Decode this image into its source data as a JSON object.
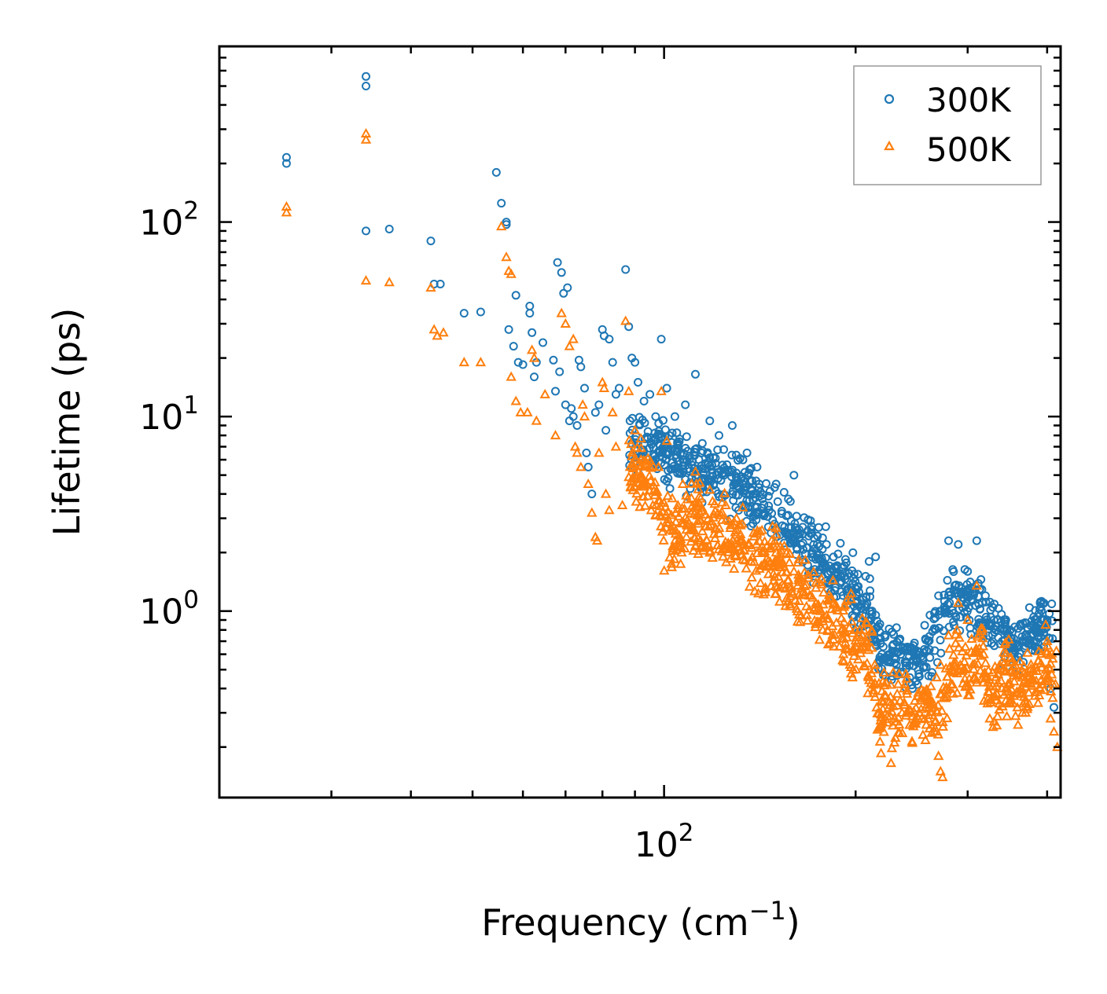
{
  "chart_data": {
    "type": "scatter",
    "title": "",
    "xlabel": "Frequency (cm",
    "xlabel_sup": "−1",
    "xlabel_end": ")",
    "ylabel": "Lifetime (ps)",
    "xscale": "log",
    "yscale": "log",
    "xlim": [
      20,
      420
    ],
    "ylim": [
      0.11,
      800
    ],
    "x_ticks": [
      {
        "value": 100,
        "base": "10",
        "exp": "2"
      }
    ],
    "y_ticks": [
      {
        "value": 1,
        "base": "10",
        "exp": "0"
      },
      {
        "value": 10,
        "base": "10",
        "exp": "1"
      },
      {
        "value": 100,
        "base": "10",
        "exp": "2"
      }
    ],
    "legend_position": "top-right",
    "series": [
      {
        "name": "300K",
        "marker": "circle",
        "color": "#1f77b4",
        "anchor_points": [
          [
            25.5,
            215
          ],
          [
            25.5,
            200
          ],
          [
            34,
            560
          ],
          [
            34,
            500
          ],
          [
            34,
            90
          ],
          [
            37,
            92
          ],
          [
            43,
            80
          ],
          [
            43.5,
            48
          ],
          [
            44.5,
            48
          ],
          [
            48.5,
            34
          ],
          [
            51.5,
            34.5
          ],
          [
            54.5,
            180
          ],
          [
            55.5,
            125
          ],
          [
            56.5,
            100
          ],
          [
            56.5,
            97
          ],
          [
            57,
            28
          ],
          [
            58,
            23
          ],
          [
            58.5,
            42
          ],
          [
            59,
            19
          ],
          [
            60,
            18.5
          ],
          [
            61.5,
            37
          ],
          [
            61.5,
            34
          ],
          [
            62,
            27
          ],
          [
            62.5,
            16
          ],
          [
            63,
            19
          ],
          [
            64.5,
            24
          ],
          [
            67,
            19.5
          ],
          [
            67.5,
            13.5
          ],
          [
            68,
            62
          ],
          [
            68.5,
            17
          ],
          [
            69,
            55
          ],
          [
            69.5,
            43
          ],
          [
            70,
            11.5
          ],
          [
            70.5,
            46
          ],
          [
            71,
            9.5
          ],
          [
            71.5,
            11
          ],
          [
            72,
            10
          ],
          [
            73,
            9
          ],
          [
            73.5,
            19.5
          ],
          [
            74,
            18
          ],
          [
            75,
            14
          ],
          [
            75.5,
            6.5
          ],
          [
            76,
            5.5
          ],
          [
            77,
            4
          ],
          [
            78,
            10.5
          ],
          [
            79,
            11.5
          ],
          [
            80,
            28
          ],
          [
            80.5,
            26
          ],
          [
            81,
            8.5
          ],
          [
            82,
            25
          ],
          [
            83,
            19
          ],
          [
            84,
            13
          ],
          [
            85,
            14
          ],
          [
            87,
            57
          ],
          [
            88,
            29
          ],
          [
            89,
            20
          ],
          [
            90,
            19
          ],
          [
            91,
            15
          ],
          [
            93,
            12
          ],
          [
            95,
            13
          ],
          [
            97,
            10
          ],
          [
            99,
            25
          ],
          [
            101,
            14
          ],
          [
            104,
            10
          ],
          [
            108,
            11.5
          ],
          [
            112,
            16.5
          ],
          [
            118,
            9.5
          ],
          [
            122,
            8
          ],
          [
            128,
            9
          ],
          [
            135,
            6.5
          ],
          [
            140,
            5.5
          ],
          [
            150,
            4.5
          ],
          [
            160,
            5
          ],
          [
            170,
            2.5
          ],
          [
            180,
            2.2
          ],
          [
            190,
            1.5
          ],
          [
            195,
            1.3
          ],
          [
            200,
            1.1
          ],
          [
            205,
            0.95
          ],
          [
            210,
            1.8
          ],
          [
            215,
            1.9
          ],
          [
            220,
            0.6
          ],
          [
            230,
            0.57
          ],
          [
            240,
            0.55
          ],
          [
            260,
            0.7
          ],
          [
            270,
            1.2
          ],
          [
            280,
            2.3
          ],
          [
            290,
            2.2
          ],
          [
            300,
            1.6
          ],
          [
            310,
            2.3
          ],
          [
            320,
            1.2
          ],
          [
            330,
            0.9
          ],
          [
            340,
            0.7
          ],
          [
            350,
            0.8
          ],
          [
            360,
            0.65
          ],
          [
            370,
            0.75
          ],
          [
            380,
            0.85
          ],
          [
            390,
            1.1
          ],
          [
            400,
            0.9
          ],
          [
            405,
            0.4
          ],
          [
            410,
            0.32
          ]
        ],
        "trend": [
          [
            88,
            7.5
          ],
          [
            95,
            7.2
          ],
          [
            100,
            6.5
          ],
          [
            106,
            5.8
          ],
          [
            115,
            5.2
          ],
          [
            125,
            4.6
          ],
          [
            135,
            4.0
          ],
          [
            145,
            3.4
          ],
          [
            155,
            2.8
          ],
          [
            165,
            2.3
          ],
          [
            175,
            1.9
          ],
          [
            185,
            1.6
          ],
          [
            195,
            1.35
          ],
          [
            205,
            1.15
          ],
          [
            212,
            0.95
          ],
          [
            218,
            0.62
          ],
          [
            230,
            0.58
          ],
          [
            245,
            0.56
          ],
          [
            258,
            0.6
          ],
          [
            268,
            0.75
          ],
          [
            278,
            1.05
          ],
          [
            288,
            1.25
          ],
          [
            298,
            1.1
          ],
          [
            308,
            1.05
          ],
          [
            318,
            0.95
          ],
          [
            328,
            0.85
          ],
          [
            338,
            0.78
          ],
          [
            350,
            0.72
          ],
          [
            362,
            0.68
          ],
          [
            375,
            0.74
          ],
          [
            388,
            0.8
          ],
          [
            400,
            0.84
          ],
          [
            410,
            0.86
          ]
        ],
        "trend_spread": 0.22
      },
      {
        "name": "500K",
        "marker": "triangle",
        "color": "#ff7f0e",
        "anchor_points": [
          [
            25.5,
            120
          ],
          [
            25.5,
            112
          ],
          [
            34,
            285
          ],
          [
            34,
            265
          ],
          [
            34,
            50
          ],
          [
            37,
            49
          ],
          [
            43,
            46
          ],
          [
            43.5,
            28
          ],
          [
            44,
            26
          ],
          [
            45,
            27
          ],
          [
            48.5,
            19
          ],
          [
            51.5,
            19
          ],
          [
            55.5,
            95
          ],
          [
            56.5,
            66
          ],
          [
            57,
            56
          ],
          [
            57.5,
            54
          ],
          [
            57.5,
            16
          ],
          [
            58.5,
            12
          ],
          [
            59.5,
            10.5
          ],
          [
            61,
            10.5
          ],
          [
            62,
            22
          ],
          [
            62.5,
            20
          ],
          [
            63,
            9.5
          ],
          [
            65,
            13
          ],
          [
            67.5,
            8
          ],
          [
            69,
            34
          ],
          [
            70,
            30
          ],
          [
            71,
            23
          ],
          [
            72,
            25
          ],
          [
            72.5,
            7
          ],
          [
            73,
            6.5
          ],
          [
            74,
            5.5
          ],
          [
            74.5,
            11.5
          ],
          [
            75,
            10
          ],
          [
            76,
            4.5
          ],
          [
            77,
            3.2
          ],
          [
            78,
            2.4
          ],
          [
            78.5,
            2.3
          ],
          [
            79,
            6.5
          ],
          [
            80,
            15
          ],
          [
            80.5,
            14
          ],
          [
            81,
            4
          ],
          [
            82,
            3.3
          ],
          [
            83,
            10.5
          ],
          [
            84,
            7
          ],
          [
            86,
            3.5
          ],
          [
            87,
            31
          ],
          [
            88,
            13.5
          ],
          [
            90,
            8.5
          ],
          [
            92,
            6
          ],
          [
            94,
            4.5
          ],
          [
            96,
            3.5
          ],
          [
            98,
            5.5
          ],
          [
            99,
            13.5
          ],
          [
            101,
            7.5
          ],
          [
            103,
            3.8
          ],
          [
            107,
            4.5
          ],
          [
            112,
            5.2
          ],
          [
            118,
            4.2
          ],
          [
            125,
            3.5
          ],
          [
            130,
            3.0
          ],
          [
            140,
            2.5
          ],
          [
            150,
            2.0
          ],
          [
            160,
            1.6
          ],
          [
            170,
            1.2
          ],
          [
            180,
            0.95
          ],
          [
            190,
            0.8
          ],
          [
            198,
            0.62
          ],
          [
            205,
            0.75
          ],
          [
            212,
            0.8
          ],
          [
            218,
            0.25
          ],
          [
            222,
            0.37
          ],
          [
            230,
            0.28
          ],
          [
            240,
            0.29
          ],
          [
            252,
            0.3
          ],
          [
            262,
            0.35
          ],
          [
            270,
            0.18
          ],
          [
            272,
            0.15
          ],
          [
            274,
            0.14
          ],
          [
            280,
            0.75
          ],
          [
            290,
            1.1
          ],
          [
            300,
            0.9
          ],
          [
            310,
            1.35
          ],
          [
            318,
            0.6
          ],
          [
            325,
            0.28
          ],
          [
            330,
            0.27
          ],
          [
            340,
            0.55
          ],
          [
            350,
            0.35
          ],
          [
            360,
            0.26
          ],
          [
            370,
            0.3
          ],
          [
            380,
            0.5
          ],
          [
            390,
            0.4
          ],
          [
            400,
            0.7
          ],
          [
            405,
            0.28
          ],
          [
            410,
            0.24
          ],
          [
            415,
            0.2
          ]
        ],
        "trend": [
          [
            88,
            5.8
          ],
          [
            93,
            5.0
          ],
          [
            97,
            4.0
          ],
          [
            100,
            2.6
          ],
          [
            104,
            2.7
          ],
          [
            110,
            2.9
          ],
          [
            118,
            2.75
          ],
          [
            126,
            2.5
          ],
          [
            135,
            2.15
          ],
          [
            145,
            1.8
          ],
          [
            155,
            1.5
          ],
          [
            165,
            1.2
          ],
          [
            175,
            1.0
          ],
          [
            185,
            0.85
          ],
          [
            195,
            0.73
          ],
          [
            205,
            0.65
          ],
          [
            212,
            0.6
          ],
          [
            218,
            0.3
          ],
          [
            228,
            0.29
          ],
          [
            240,
            0.3
          ],
          [
            252,
            0.3
          ],
          [
            262,
            0.32
          ],
          [
            270,
            0.3
          ],
          [
            276,
            0.36
          ],
          [
            282,
            0.5
          ],
          [
            290,
            0.56
          ],
          [
            298,
            0.52
          ],
          [
            306,
            0.58
          ],
          [
            314,
            0.62
          ],
          [
            322,
            0.5
          ],
          [
            332,
            0.42
          ],
          [
            342,
            0.48
          ],
          [
            352,
            0.42
          ],
          [
            362,
            0.4
          ],
          [
            372,
            0.44
          ],
          [
            384,
            0.46
          ],
          [
            396,
            0.5
          ],
          [
            408,
            0.52
          ],
          [
            414,
            0.53
          ]
        ],
        "trend_spread": 0.28
      }
    ]
  }
}
